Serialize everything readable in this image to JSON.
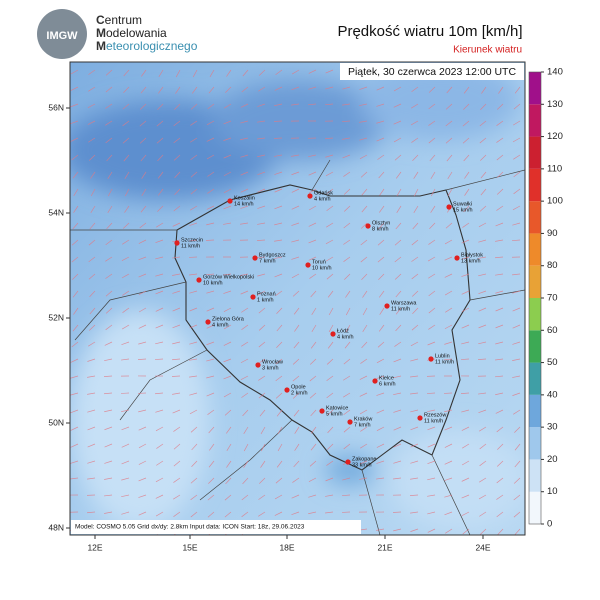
{
  "header": {
    "logo": "IMGW",
    "org_lines": [
      "Centrum",
      "Modelowania",
      "Meteorologicznego"
    ]
  },
  "map": {
    "title": "Prędkość wiatru 10m [km/h]",
    "subtitle": "Kierunek wiatru",
    "timestamp": "Piątek, 30 czerwca 2023 12:00 UTC",
    "footer": "Model: COSMO 5.05  Grid dx/dy: 2.8km  Input data: ICON  Start: 18z, 29.06.2023",
    "lat_labels": [
      "56N",
      "54N",
      "52N",
      "50N",
      "48N"
    ],
    "lon_labels": [
      "12E",
      "15E",
      "18E",
      "21E",
      "24E"
    ],
    "cities": [
      {
        "name": "Gdańsk",
        "wind": "4 km/h"
      },
      {
        "name": "Koszalin",
        "wind": "14 km/h"
      },
      {
        "name": "Suwałki",
        "wind": "15 km/h"
      },
      {
        "name": "Olsztyn",
        "wind": "8 km/h"
      },
      {
        "name": "Szczecin",
        "wind": "11 km/h"
      },
      {
        "name": "Bydgoszcz",
        "wind": "7 km/h"
      },
      {
        "name": "Toruń",
        "wind": "10 km/h"
      },
      {
        "name": "Białystok",
        "wind": "13 km/h"
      },
      {
        "name": "Gorzów Wielkopolski",
        "wind": "10 km/h"
      },
      {
        "name": "Poznań",
        "wind": "1 km/h"
      },
      {
        "name": "Warszawa",
        "wind": "11 km/h"
      },
      {
        "name": "Zielona Góra",
        "wind": "4 km/h"
      },
      {
        "name": "Łódź",
        "wind": "4 km/h"
      },
      {
        "name": "Lublin",
        "wind": "11 km/h"
      },
      {
        "name": "Wrocław",
        "wind": "3 km/h"
      },
      {
        "name": "Kielce",
        "wind": "6 km/h"
      },
      {
        "name": "Opole",
        "wind": "2 km/h"
      },
      {
        "name": "Katowice",
        "wind": "5 km/h"
      },
      {
        "name": "Kraków",
        "wind": "7 km/h"
      },
      {
        "name": "Rzeszów",
        "wind": "11 km/h"
      },
      {
        "name": "Zakopane",
        "wind": "33 km/h"
      }
    ],
    "colorbar": {
      "ticks": [
        0,
        10,
        20,
        30,
        40,
        50,
        60,
        70,
        80,
        90,
        100,
        110,
        120,
        130,
        140
      ],
      "colors": [
        "#f2f7fc",
        "#cde2f5",
        "#9fc8ec",
        "#6ea7dc",
        "#3f9fa6",
        "#3daa55",
        "#8ccd4f",
        "#e8a236",
        "#ee8a2a",
        "#e8582a",
        "#e0302a",
        "#cc2030",
        "#c01860",
        "#a0108a"
      ]
    }
  }
}
